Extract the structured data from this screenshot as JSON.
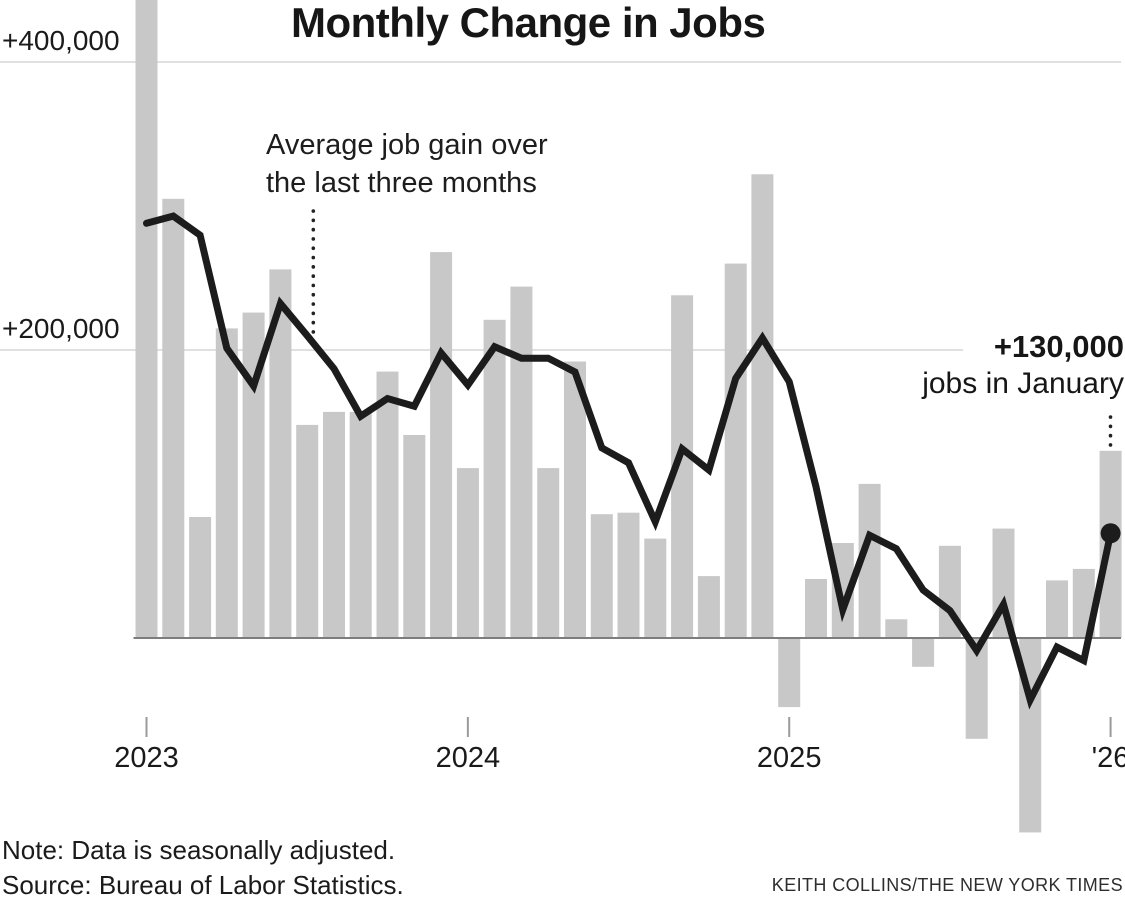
{
  "title": "Monthly Change in Jobs",
  "y_axis": {
    "labels": [
      {
        "text": "+400,000",
        "value": 400000
      },
      {
        "text": "+200,000",
        "value": 200000
      }
    ]
  },
  "x_axis": {
    "labels": [
      {
        "text": "2023",
        "month_index": 0
      },
      {
        "text": "2024",
        "month_index": 12
      },
      {
        "text": "2025",
        "month_index": 24
      },
      {
        "text": "'26",
        "month_index": 36
      }
    ]
  },
  "annotations": {
    "average_line_label_line1": "Average job gain over",
    "average_line_label_line2": "the last three months",
    "last_point_value": "+130,000",
    "last_point_label": "jobs in January"
  },
  "footer": {
    "note": "Note: Data is seasonally adjusted.",
    "source": "Source: Bureau of Labor Statistics.",
    "credit": "KEITH COLLINS/THE NEW YORK TIMES"
  },
  "chart_data": {
    "type": "bar",
    "title": "Monthly Change in Jobs",
    "unit": "jobs",
    "ylim": [
      -200000,
      460000
    ],
    "gridline_values": [
      200000,
      400000
    ],
    "legend_position": "none",
    "months": [
      "Jan 2023",
      "Feb 2023",
      "Mar 2023",
      "Apr 2023",
      "May 2023",
      "Jun 2023",
      "Jul 2023",
      "Aug 2023",
      "Sep 2023",
      "Oct 2023",
      "Nov 2023",
      "Dec 2023",
      "Jan 2024",
      "Feb 2024",
      "Mar 2024",
      "Apr 2024",
      "May 2024",
      "Jun 2024",
      "Jul 2024",
      "Aug 2024",
      "Sep 2024",
      "Oct 2024",
      "Nov 2024",
      "Dec 2024",
      "Jan 2025",
      "Feb 2025",
      "Mar 2025",
      "Apr 2025",
      "May 2025",
      "Jun 2025",
      "Jul 2025",
      "Aug 2025",
      "Sep 2025",
      "Oct 2025",
      "Nov 2025",
      "Dec 2025",
      "Jan 2026"
    ],
    "series": [
      {
        "name": "Monthly change in jobs",
        "style": "bar",
        "color": "#c8c8c8",
        "values_thousands": [
          450,
          305,
          84,
          215,
          226,
          256,
          148,
          157,
          157,
          185,
          141,
          268,
          118,
          221,
          244,
          118,
          192,
          86,
          87,
          69,
          238,
          43,
          260,
          322,
          -48,
          41,
          66,
          107,
          13,
          -20,
          64,
          -70,
          76,
          -135,
          40,
          48,
          130
        ]
      },
      {
        "name": "Average job gain over the last three months",
        "style": "line",
        "color": "#1c1c1c",
        "values_thousands": [
          288,
          293,
          279.7,
          201.3,
          175,
          232.3,
          210,
          187,
          154,
          166.3,
          161,
          198,
          175.7,
          202.3,
          194.3,
          194.3,
          184.7,
          132,
          121.7,
          80.7,
          131.3,
          116.7,
          180.3,
          208.3,
          178,
          105,
          19.7,
          71.3,
          62,
          33.3,
          19,
          -8.7,
          23.3,
          -43,
          -6.3,
          -15.7,
          72.7
        ]
      }
    ],
    "highlighted_point": {
      "month": "Jan 2026",
      "bar_value": 130000,
      "line_value": 72700
    },
    "colors": {
      "bar": "#c8c8c8",
      "line": "#1c1c1c",
      "gridline": "#d5d5d5",
      "axis": "#7d7d7d",
      "tick": "#9a9a9a",
      "pointer_dots": "#222222"
    }
  }
}
